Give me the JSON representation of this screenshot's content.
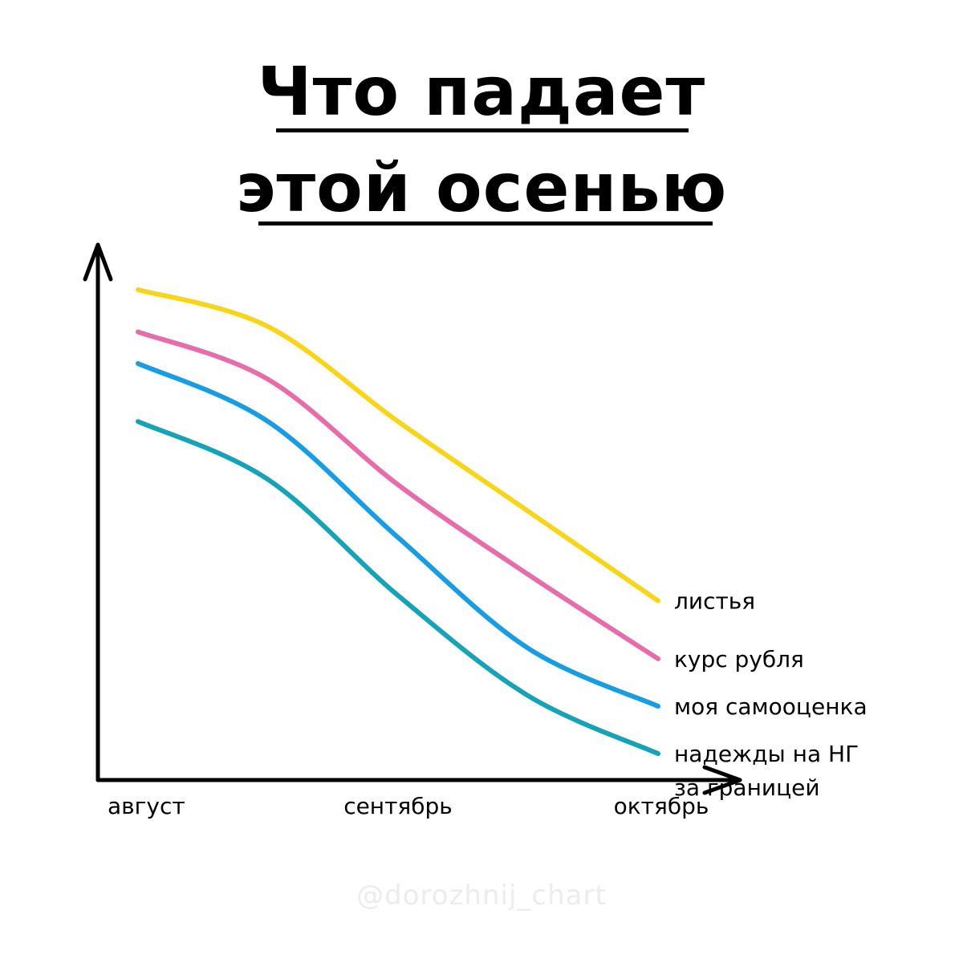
{
  "title": {
    "line1": "Что падает",
    "line2": "этой осенью"
  },
  "watermark": "@dorozhnij_chart",
  "chart_data": {
    "type": "line",
    "title": "Что падает этой осенью",
    "xlabel": "",
    "ylabel": "",
    "categories": [
      "август",
      "сентябрь",
      "октябрь"
    ],
    "x": [
      0,
      0.25,
      0.5,
      0.75,
      1.0
    ],
    "ylim": [
      0,
      10
    ],
    "grid": false,
    "legend": "inline-right",
    "series": [
      {
        "name": "листья",
        "color": "#f7d51d",
        "values": [
          9.3,
          8.6,
          6.8,
          5.1,
          3.4
        ],
        "label_lines": [
          "листья"
        ]
      },
      {
        "name": "курс рубля",
        "color": "#e56daa",
        "values": [
          8.5,
          7.6,
          5.6,
          3.9,
          2.3
        ],
        "label_lines": [
          "курс рубля"
        ]
      },
      {
        "name": "моя самооценка",
        "color": "#1a9de0",
        "values": [
          7.9,
          6.8,
          4.6,
          2.5,
          1.4
        ],
        "label_lines": [
          "моя самооценка"
        ]
      },
      {
        "name": "надежды на НГ за границей",
        "color": "#17a2b5",
        "values": [
          6.8,
          5.7,
          3.5,
          1.6,
          0.5
        ],
        "label_lines": [
          "надежды на НГ",
          "за границей"
        ]
      }
    ]
  }
}
